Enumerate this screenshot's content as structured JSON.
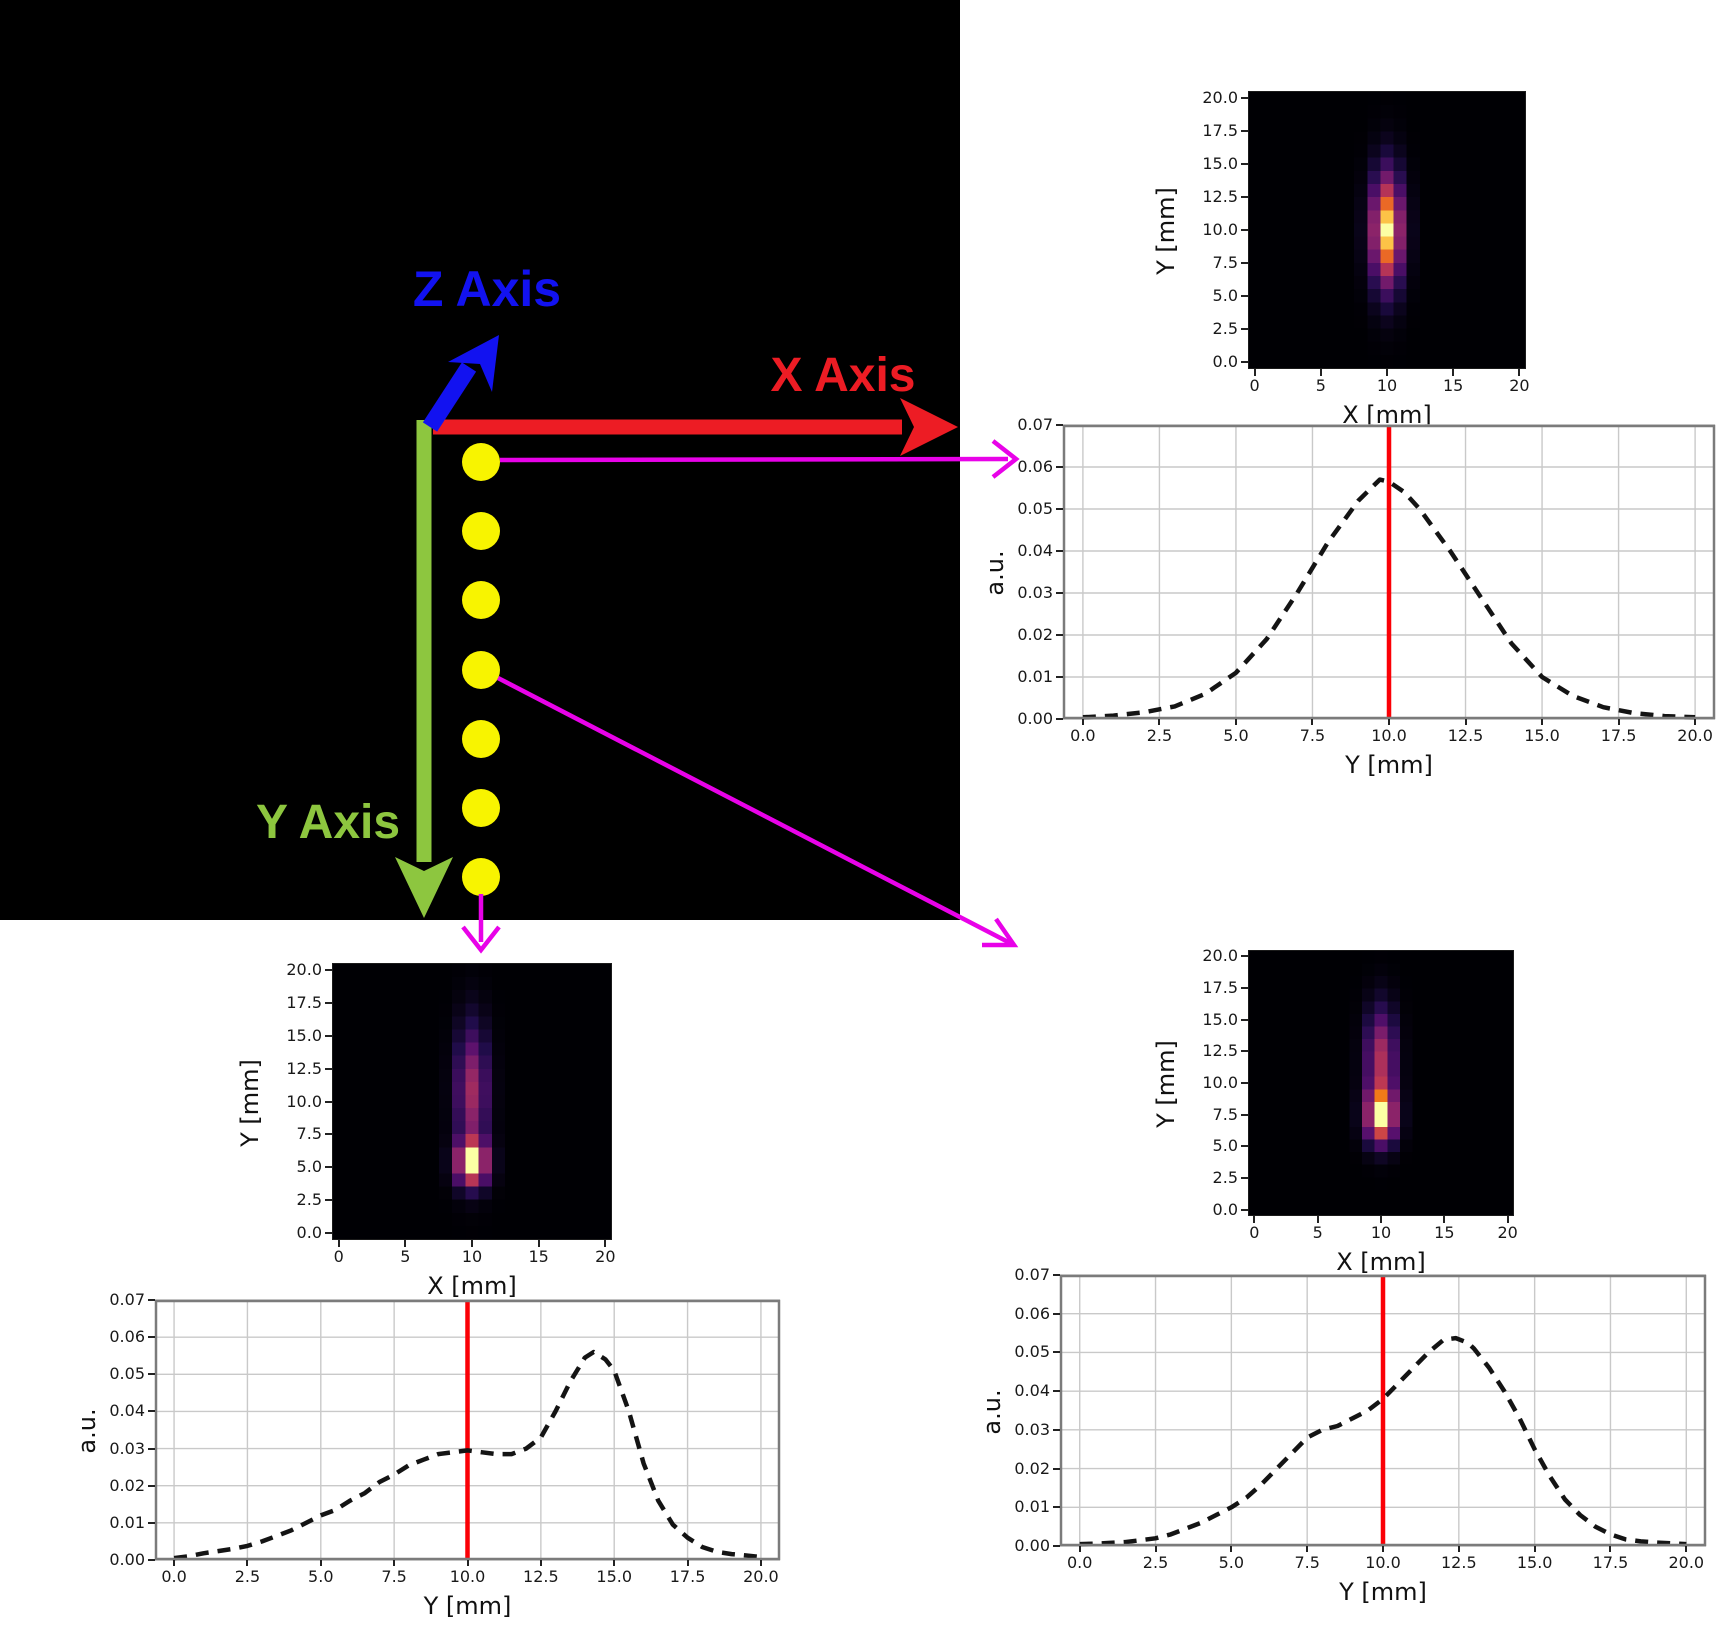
{
  "scene": {
    "labels": {
      "z": "Z Axis",
      "x": "X Axis",
      "y": "Y Axis"
    },
    "colors": {
      "panel_bg": "#000000",
      "z_axis": "#1212f0",
      "x_axis": "#ed1c24",
      "y_axis": "#8dc63f",
      "dots": "#f8f400",
      "pointer_arrows": "#e802e8"
    },
    "dot_count": 7,
    "pointer_arrows": [
      {
        "from": "dot-1",
        "to": "top-right-profile"
      },
      {
        "from": "dot-4",
        "to": "bottom-right-figure"
      },
      {
        "from": "dot-7",
        "to": "bottom-left-figure"
      }
    ]
  },
  "chart_data": [
    {
      "id": "heatmap-top-right",
      "type": "heatmap",
      "xlabel": "X [mm]",
      "ylabel": "Y [mm]",
      "xticks": [
        "0",
        "5",
        "10",
        "15",
        "20"
      ],
      "yticks": [
        "20.0",
        "17.5",
        "15.0",
        "12.5",
        "10.0",
        "7.5",
        "5.0",
        "2.5",
        "0.0"
      ],
      "x_range": [
        0,
        20
      ],
      "y_range": [
        0,
        20
      ],
      "grid_cells": 21,
      "colormap": "inferno",
      "beam": {
        "cx": 10,
        "sx": 0.8,
        "components": [
          {
            "cy": 10,
            "sy": 2.9,
            "amp": 1.0
          }
        ]
      }
    },
    {
      "id": "profile-top-right",
      "type": "line",
      "xlabel": "Y [mm]",
      "ylabel": "a.u.",
      "xticks": [
        "0.0",
        "2.5",
        "5.0",
        "7.5",
        "10.0",
        "12.5",
        "15.0",
        "17.5",
        "20.0"
      ],
      "yticks": [
        "0.07",
        "0.06",
        "0.05",
        "0.04",
        "0.03",
        "0.02",
        "0.01",
        "0.00"
      ],
      "xlim": [
        0,
        20
      ],
      "ylim": [
        0,
        0.07
      ],
      "grid": true,
      "legend": "none",
      "line_style": "dashed",
      "line_color": "#141414",
      "red_line_x": 10,
      "red_line_color": "#fb0006",
      "x": [
        0,
        1,
        2,
        3,
        4,
        5,
        6,
        7,
        8,
        9,
        9.7,
        10,
        10.5,
        11,
        12,
        13,
        14,
        15,
        16,
        17,
        18,
        19,
        20
      ],
      "y": [
        0.0004,
        0.0008,
        0.0016,
        0.003,
        0.006,
        0.011,
        0.019,
        0.03,
        0.042,
        0.052,
        0.057,
        0.0565,
        0.054,
        0.05,
        0.04,
        0.029,
        0.018,
        0.01,
        0.0055,
        0.0028,
        0.0014,
        0.0007,
        0.0004
      ]
    },
    {
      "id": "heatmap-bottom-left",
      "type": "heatmap",
      "xlabel": "X [mm]",
      "ylabel": "Y [mm]",
      "xticks": [
        "0",
        "5",
        "10",
        "15",
        "20"
      ],
      "yticks": [
        "20.0",
        "17.5",
        "15.0",
        "12.5",
        "10.0",
        "7.5",
        "5.0",
        "2.5",
        "0.0"
      ],
      "x_range": [
        0,
        20
      ],
      "y_range": [
        0,
        20
      ],
      "grid_cells": 21,
      "colormap": "inferno",
      "beam": {
        "cx": 10,
        "sx": 0.8,
        "components": [
          {
            "cy": 5.3,
            "sy": 1.15,
            "amp": 1.0
          },
          {
            "cy": 10.8,
            "sy": 3.3,
            "amp": 0.52
          }
        ]
      }
    },
    {
      "id": "profile-bottom-left",
      "type": "line",
      "xlabel": "Y [mm]",
      "ylabel": "a.u.",
      "xticks": [
        "0.0",
        "2.5",
        "5.0",
        "7.5",
        "10.0",
        "12.5",
        "15.0",
        "17.5",
        "20.0"
      ],
      "yticks": [
        "0.07",
        "0.06",
        "0.05",
        "0.04",
        "0.03",
        "0.02",
        "0.01",
        "0.00"
      ],
      "xlim": [
        0,
        20
      ],
      "ylim": [
        0,
        0.07
      ],
      "grid": true,
      "legend": "none",
      "line_style": "dashed",
      "line_color": "#141414",
      "red_line_x": 10,
      "red_line_color": "#fb0006",
      "x": [
        0,
        0.5,
        1,
        1.5,
        2,
        2.5,
        3,
        3.5,
        4,
        4.5,
        5,
        5.5,
        6,
        6.5,
        7,
        7.5,
        8,
        8.5,
        9,
        9.5,
        10,
        10.5,
        11,
        11.5,
        12,
        12.5,
        13,
        13.5,
        14,
        14.3,
        14.7,
        15,
        15.5,
        16,
        16.5,
        17,
        17.5,
        18,
        18.5,
        19,
        19.5,
        20
      ],
      "y": [
        0.0005,
        0.001,
        0.0018,
        0.0024,
        0.003,
        0.0038,
        0.005,
        0.0065,
        0.008,
        0.01,
        0.012,
        0.0135,
        0.016,
        0.018,
        0.021,
        0.023,
        0.0255,
        0.027,
        0.0285,
        0.029,
        0.0295,
        0.029,
        0.0285,
        0.0285,
        0.03,
        0.033,
        0.04,
        0.048,
        0.0545,
        0.056,
        0.054,
        0.051,
        0.04,
        0.026,
        0.016,
        0.0095,
        0.006,
        0.0035,
        0.0022,
        0.0016,
        0.0012,
        0.0008
      ]
    },
    {
      "id": "heatmap-bottom-right",
      "type": "heatmap",
      "xlabel": "X [mm]",
      "ylabel": "Y [mm]",
      "xticks": [
        "0",
        "5",
        "10",
        "15",
        "20"
      ],
      "yticks": [
        "20.0",
        "17.5",
        "15.0",
        "12.5",
        "10.0",
        "7.5",
        "5.0",
        "2.5",
        "0.0"
      ],
      "x_range": [
        0,
        20
      ],
      "y_range": [
        0,
        20
      ],
      "grid_cells": 21,
      "colormap": "inferno",
      "beam": {
        "cx": 10,
        "sx": 0.8,
        "components": [
          {
            "cy": 7.4,
            "sy": 1.45,
            "amp": 1.0
          },
          {
            "cy": 12.0,
            "sy": 2.6,
            "amp": 0.55
          }
        ]
      }
    },
    {
      "id": "profile-bottom-right",
      "type": "line",
      "xlabel": "Y [mm]",
      "ylabel": "a.u.",
      "xticks": [
        "0.0",
        "2.5",
        "5.0",
        "7.5",
        "10.0",
        "12.5",
        "15.0",
        "17.5",
        "20.0"
      ],
      "yticks": [
        "0.07",
        "0.06",
        "0.05",
        "0.04",
        "0.03",
        "0.02",
        "0.01",
        "0.00"
      ],
      "xlim": [
        0,
        20
      ],
      "ylim": [
        0,
        0.07
      ],
      "grid": true,
      "legend": "none",
      "line_style": "dashed",
      "line_color": "#141414",
      "red_line_x": 10,
      "red_line_color": "#fb0006",
      "x": [
        0,
        0.5,
        1,
        1.5,
        2,
        2.5,
        3,
        3.5,
        4,
        4.5,
        5,
        5.5,
        6,
        6.5,
        7,
        7.5,
        8,
        8.5,
        9,
        9.5,
        10,
        10.5,
        11,
        11.5,
        12,
        12.4,
        12.8,
        13,
        13.5,
        14,
        14.5,
        15,
        15.5,
        16,
        16.5,
        17,
        17.5,
        18,
        18.5,
        19,
        19.5,
        20
      ],
      "y": [
        0.0005,
        0.0006,
        0.0008,
        0.001,
        0.0015,
        0.002,
        0.003,
        0.0045,
        0.006,
        0.008,
        0.01,
        0.0125,
        0.016,
        0.02,
        0.024,
        0.028,
        0.03,
        0.031,
        0.033,
        0.035,
        0.038,
        0.042,
        0.046,
        0.05,
        0.0533,
        0.0537,
        0.0525,
        0.051,
        0.046,
        0.04,
        0.033,
        0.025,
        0.018,
        0.012,
        0.008,
        0.005,
        0.003,
        0.0017,
        0.0012,
        0.0009,
        0.0007,
        0.0005
      ]
    }
  ]
}
